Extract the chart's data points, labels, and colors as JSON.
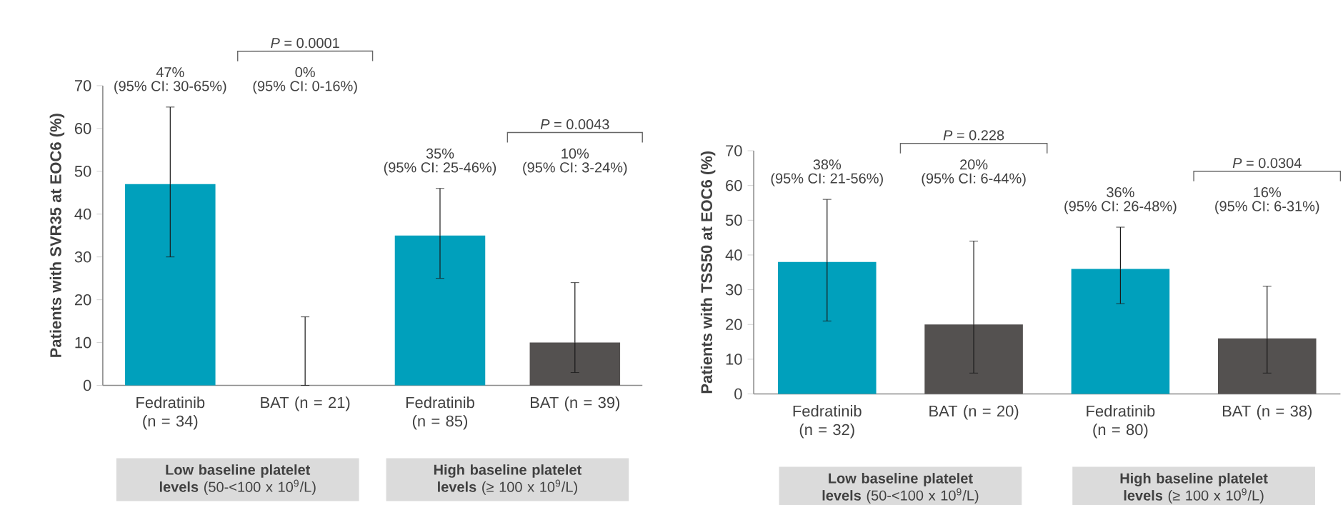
{
  "chart_data": [
    {
      "type": "bar",
      "ylabel": "Patients with SVR35 at EOC6 (%)",
      "categories": [
        "Fedratinib (n = 34)",
        "BAT (n = 21)",
        "Fedratinib (n = 85)",
        "BAT (n = 39)"
      ],
      "values": [
        47,
        0,
        35,
        10
      ],
      "colors": [
        "#00a0bc",
        "#545150",
        "#00a0bc",
        "#545150"
      ],
      "errors": [
        [
          30,
          65
        ],
        [
          0,
          16
        ],
        [
          25,
          46
        ],
        [
          3,
          24
        ]
      ],
      "ylim": [
        0,
        70
      ],
      "yticks": [
        0,
        10,
        20,
        30,
        40,
        50,
        60,
        70
      ],
      "annotations": [
        "*P* = 0.0001",
        "*P* = 0.0043",
        "**Low baseline platelet levels** (50-<100 x 10$^{9}$/L)",
        "**High baseline platelet levels** (≥ 100 x 10$^{9}$/L)",
        "47%",
        "(95% CI: 30-65%)",
        "0%",
        "(95% CI: 0-16%)",
        "35%",
        "(95% CI: 25-46%)",
        "10%",
        "(95% CI: 3-24%)"
      ]
    },
    {
      "type": "bar",
      "ylabel": "Patients with TSS50 at EOC6 (%)",
      "categories": [
        "Fedratinib (n = 32)",
        "BAT (n = 20)",
        "Fedratinib (n = 80)",
        "BAT (n = 38)"
      ],
      "values": [
        38,
        20,
        36,
        16
      ],
      "colors": [
        "#00a0bc",
        "#545150",
        "#00a0bc",
        "#545150"
      ],
      "errors": [
        [
          21,
          56
        ],
        [
          6,
          44
        ],
        [
          26,
          48
        ],
        [
          6,
          31
        ]
      ],
      "ylim": [
        0,
        70
      ],
      "yticks": [
        0,
        10,
        20,
        30,
        40,
        50,
        60,
        70
      ],
      "annotations": [
        "*P* = 0.228",
        "*P* = 0.0304",
        "**Low baseline platelet levels** (50-<100 x 10$^{9}$/L)",
        "**High baseline platelet levels** (≥ 100 x 10$^{9}$/L)",
        "38%",
        "(95% CI: 21-56%)",
        "20%",
        "(95% CI: 6-44%)",
        "36%",
        "(95% CI: 26-48%)",
        "16%",
        "(95% CI: 6-31%)"
      ]
    }
  ]
}
